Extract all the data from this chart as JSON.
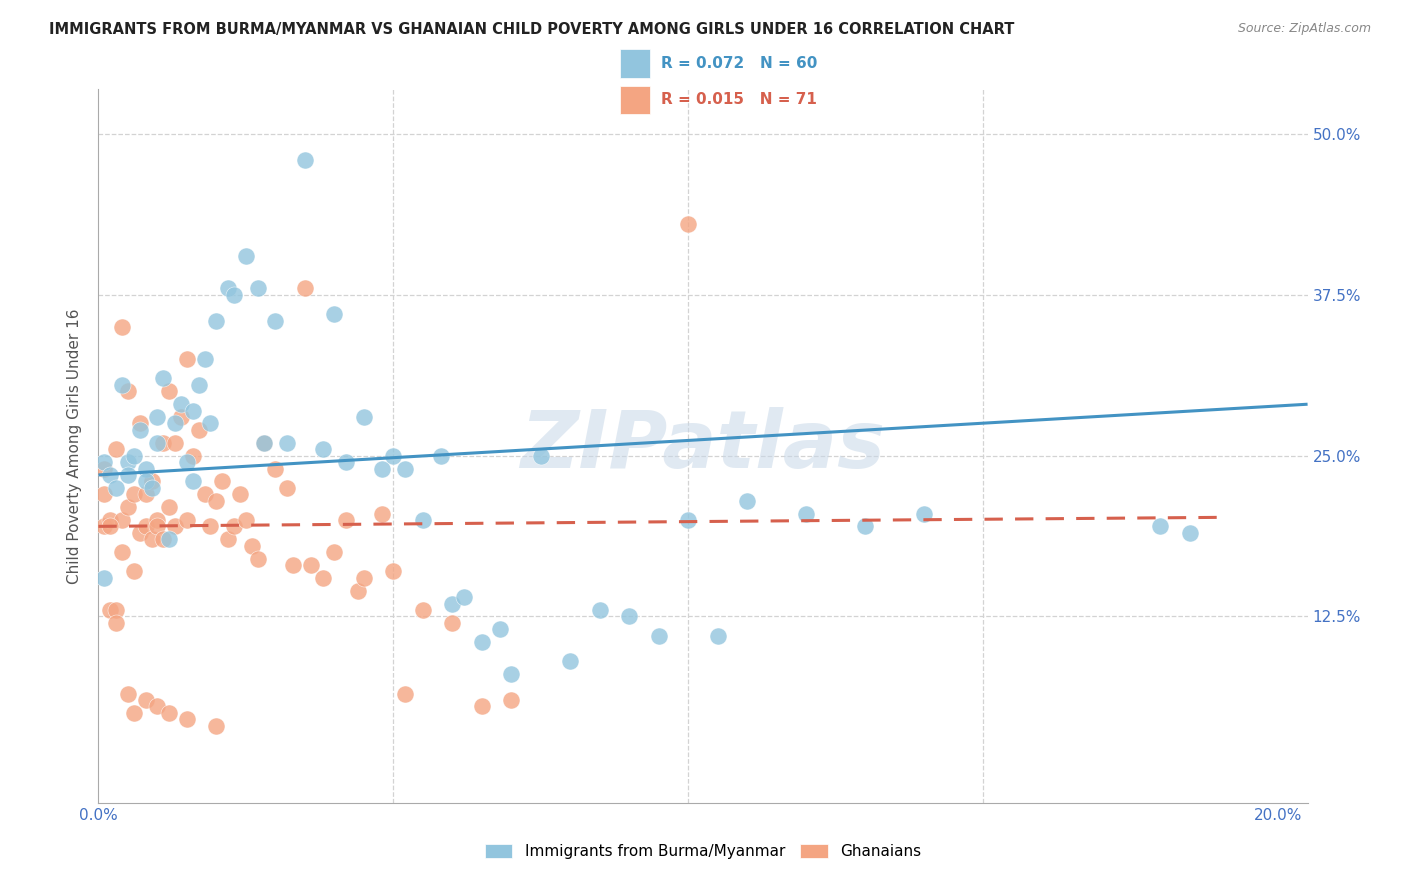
{
  "title": "IMMIGRANTS FROM BURMA/MYANMAR VS GHANAIAN CHILD POVERTY AMONG GIRLS UNDER 16 CORRELATION CHART",
  "source": "Source: ZipAtlas.com",
  "ylabel": "Child Poverty Among Girls Under 16",
  "xlim": [
    0.0,
    0.205
  ],
  "ylim": [
    -0.02,
    0.535
  ],
  "xtick_positions": [
    0.0,
    0.05,
    0.1,
    0.15,
    0.2
  ],
  "xticklabels": [
    "0.0%",
    "",
    "",
    "",
    "20.0%"
  ],
  "ytick_positions": [
    0.0,
    0.125,
    0.25,
    0.375,
    0.5
  ],
  "yticklabels": [
    "",
    "12.5%",
    "25.0%",
    "37.5%",
    "50.0%"
  ],
  "blue_R": "0.072",
  "blue_N": "60",
  "pink_R": "0.015",
  "pink_N": "71",
  "blue_color": "#92c5de",
  "pink_color": "#f4a582",
  "blue_line_color": "#4393c3",
  "pink_line_color": "#d6604d",
  "watermark": "ZIPatlas",
  "legend1_label": "Immigrants from Burma/Myanmar",
  "legend2_label": "Ghanaians",
  "blue_x": [
    0.001,
    0.001,
    0.002,
    0.003,
    0.004,
    0.005,
    0.005,
    0.006,
    0.007,
    0.008,
    0.008,
    0.009,
    0.01,
    0.01,
    0.011,
    0.012,
    0.013,
    0.014,
    0.015,
    0.016,
    0.016,
    0.017,
    0.018,
    0.019,
    0.02,
    0.022,
    0.023,
    0.025,
    0.027,
    0.028,
    0.03,
    0.032,
    0.035,
    0.038,
    0.04,
    0.042,
    0.045,
    0.048,
    0.05,
    0.052,
    0.055,
    0.058,
    0.06,
    0.062,
    0.065,
    0.068,
    0.07,
    0.075,
    0.08,
    0.085,
    0.09,
    0.095,
    0.1,
    0.105,
    0.11,
    0.12,
    0.13,
    0.14,
    0.18,
    0.185
  ],
  "blue_y": [
    0.245,
    0.155,
    0.235,
    0.225,
    0.305,
    0.245,
    0.235,
    0.25,
    0.27,
    0.24,
    0.23,
    0.225,
    0.28,
    0.26,
    0.31,
    0.185,
    0.275,
    0.29,
    0.245,
    0.285,
    0.23,
    0.305,
    0.325,
    0.275,
    0.355,
    0.38,
    0.375,
    0.405,
    0.38,
    0.26,
    0.355,
    0.26,
    0.48,
    0.255,
    0.36,
    0.245,
    0.28,
    0.24,
    0.25,
    0.24,
    0.2,
    0.25,
    0.135,
    0.14,
    0.105,
    0.115,
    0.08,
    0.25,
    0.09,
    0.13,
    0.125,
    0.11,
    0.2,
    0.11,
    0.215,
    0.205,
    0.195,
    0.205,
    0.195,
    0.19
  ],
  "pink_x": [
    0.001,
    0.001,
    0.002,
    0.002,
    0.003,
    0.003,
    0.004,
    0.004,
    0.005,
    0.005,
    0.006,
    0.006,
    0.007,
    0.007,
    0.008,
    0.008,
    0.009,
    0.009,
    0.01,
    0.01,
    0.011,
    0.011,
    0.012,
    0.012,
    0.013,
    0.013,
    0.014,
    0.015,
    0.015,
    0.016,
    0.017,
    0.018,
    0.019,
    0.02,
    0.021,
    0.022,
    0.023,
    0.024,
    0.025,
    0.026,
    0.027,
    0.028,
    0.03,
    0.032,
    0.033,
    0.035,
    0.036,
    0.038,
    0.04,
    0.042,
    0.044,
    0.045,
    0.048,
    0.05,
    0.052,
    0.055,
    0.06,
    0.065,
    0.07,
    0.1,
    0.001,
    0.002,
    0.003,
    0.004,
    0.005,
    0.006,
    0.008,
    0.01,
    0.012,
    0.015,
    0.02
  ],
  "pink_y": [
    0.22,
    0.195,
    0.2,
    0.13,
    0.255,
    0.13,
    0.35,
    0.2,
    0.3,
    0.21,
    0.22,
    0.16,
    0.275,
    0.19,
    0.22,
    0.195,
    0.23,
    0.185,
    0.2,
    0.195,
    0.26,
    0.185,
    0.3,
    0.21,
    0.26,
    0.195,
    0.28,
    0.325,
    0.2,
    0.25,
    0.27,
    0.22,
    0.195,
    0.215,
    0.23,
    0.185,
    0.195,
    0.22,
    0.2,
    0.18,
    0.17,
    0.26,
    0.24,
    0.225,
    0.165,
    0.38,
    0.165,
    0.155,
    0.175,
    0.2,
    0.145,
    0.155,
    0.205,
    0.16,
    0.065,
    0.13,
    0.12,
    0.055,
    0.06,
    0.43,
    0.24,
    0.195,
    0.12,
    0.175,
    0.065,
    0.05,
    0.06,
    0.055,
    0.05,
    0.045,
    0.04
  ],
  "blue_line_x": [
    0.0,
    0.205
  ],
  "blue_line_y": [
    0.235,
    0.29
  ],
  "pink_line_x": [
    0.0,
    0.19
  ],
  "pink_line_y": [
    0.195,
    0.202
  ],
  "grid_color": "#d3d3d3",
  "tick_color": "#4472c4",
  "title_fontsize": 10.5,
  "source_fontsize": 9,
  "ylabel_fontsize": 11,
  "tick_fontsize": 11,
  "legend_fontsize": 11
}
